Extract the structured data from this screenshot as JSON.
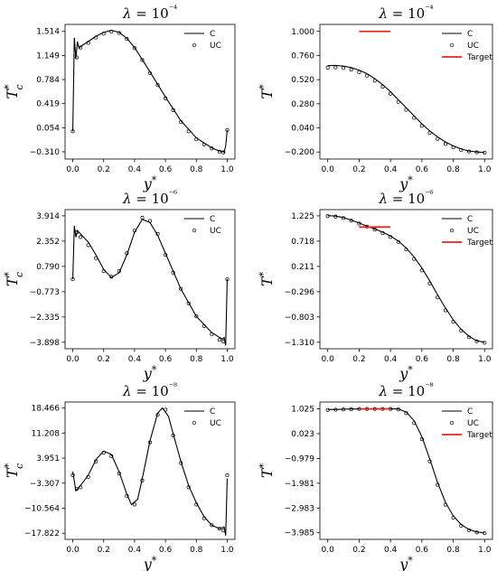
{
  "chart_data": [
    {
      "type": "line",
      "title": "λ = 10⁻⁴",
      "xlabel": "y*",
      "ylabel": "Tc*",
      "xlim": [
        -0.05,
        1.05
      ],
      "ylim": [
        -0.42,
        1.62
      ],
      "xticks": [
        "0.0",
        "0.2",
        "0.4",
        "0.6",
        "0.8",
        "1.0"
      ],
      "yticks": [
        "-0.310",
        "0.054",
        "0.419",
        "0.784",
        "1.149",
        "1.514"
      ],
      "legend_position": "top-right",
      "series": [
        {
          "name": "C",
          "style": "line",
          "color": "#000000",
          "x": [
            0,
            0.01,
            0.02,
            0.03,
            0.04,
            0.06,
            0.1,
            0.15,
            0.2,
            0.25,
            0.3,
            0.35,
            0.4,
            0.5,
            0.6,
            0.7,
            0.8,
            0.9,
            0.95,
            0.97,
            0.98,
            0.99,
            1.0
          ],
          "y": [
            0.0,
            1.42,
            1.1,
            1.36,
            1.26,
            1.3,
            1.36,
            1.44,
            1.5,
            1.53,
            1.5,
            1.41,
            1.27,
            0.9,
            0.52,
            0.16,
            -0.1,
            -0.25,
            -0.3,
            -0.3,
            -0.32,
            -0.22,
            0.02
          ]
        },
        {
          "name": "UC",
          "style": "markers",
          "color": "#000000",
          "x": [
            0,
            0.025,
            0.05,
            0.1,
            0.15,
            0.2,
            0.25,
            0.3,
            0.35,
            0.4,
            0.45,
            0.5,
            0.55,
            0.6,
            0.65,
            0.7,
            0.75,
            0.8,
            0.85,
            0.9,
            0.95,
            0.975,
            1.0
          ],
          "y": [
            0.0,
            1.12,
            1.27,
            1.34,
            1.42,
            1.48,
            1.51,
            1.49,
            1.4,
            1.26,
            1.08,
            0.88,
            0.7,
            0.5,
            0.32,
            0.14,
            0.0,
            -0.12,
            -0.2,
            -0.26,
            -0.31,
            -0.32,
            0.02
          ]
        }
      ]
    },
    {
      "type": "line",
      "title": "λ = 10⁻⁴",
      "xlabel": "y*",
      "ylabel": "T*",
      "xlim": [
        -0.05,
        1.05
      ],
      "ylim": [
        -0.27,
        1.07
      ],
      "xticks": [
        "0.0",
        "0.2",
        "0.4",
        "0.6",
        "0.8",
        "1.0"
      ],
      "yticks": [
        "-0.200",
        "0.040",
        "0.280",
        "0.520",
        "0.760",
        "1.000"
      ],
      "legend_position": "top-right",
      "series": [
        {
          "name": "C",
          "style": "line",
          "color": "#000000",
          "x": [
            0,
            0.05,
            0.1,
            0.15,
            0.2,
            0.25,
            0.3,
            0.35,
            0.4,
            0.45,
            0.5,
            0.55,
            0.6,
            0.65,
            0.7,
            0.75,
            0.8,
            0.85,
            0.9,
            0.95,
            1.0
          ],
          "y": [
            0.66,
            0.662,
            0.655,
            0.64,
            0.615,
            0.58,
            0.53,
            0.47,
            0.4,
            0.32,
            0.24,
            0.16,
            0.08,
            0.01,
            -0.05,
            -0.1,
            -0.14,
            -0.17,
            -0.19,
            -0.2,
            -0.205
          ]
        },
        {
          "name": "UC",
          "style": "markers",
          "color": "#000000",
          "x": [
            0,
            0.05,
            0.1,
            0.15,
            0.2,
            0.25,
            0.3,
            0.35,
            0.4,
            0.45,
            0.5,
            0.55,
            0.6,
            0.65,
            0.7,
            0.75,
            0.8,
            0.85,
            0.9,
            0.95,
            1.0
          ],
          "y": [
            0.64,
            0.642,
            0.635,
            0.62,
            0.595,
            0.56,
            0.51,
            0.45,
            0.38,
            0.3,
            0.22,
            0.14,
            0.06,
            -0.01,
            -0.07,
            -0.12,
            -0.155,
            -0.18,
            -0.195,
            -0.203,
            -0.207
          ]
        },
        {
          "name": "Target",
          "style": "segment",
          "color": "#e8261e",
          "x": [
            0.2,
            0.4
          ],
          "y": [
            1.0,
            1.0
          ]
        }
      ]
    },
    {
      "type": "line",
      "title": "λ = 10⁻⁶",
      "xlabel": "y*",
      "ylabel": "Tc*",
      "xlim": [
        -0.05,
        1.05
      ],
      "ylim": [
        -4.3,
        4.3
      ],
      "xticks": [
        "0.0",
        "0.2",
        "0.4",
        "0.6",
        "0.8",
        "1.0"
      ],
      "yticks": [
        "-3.898",
        "-2.335",
        "-0.773",
        "0.790",
        "2.352",
        "3.914"
      ],
      "legend_position": "top-right",
      "series": [
        {
          "name": "C",
          "style": "line",
          "color": "#000000",
          "x": [
            0,
            0.01,
            0.02,
            0.03,
            0.05,
            0.1,
            0.15,
            0.2,
            0.25,
            0.3,
            0.35,
            0.4,
            0.45,
            0.5,
            0.55,
            0.6,
            0.7,
            0.8,
            0.9,
            0.95,
            0.97,
            0.98,
            0.99,
            1.0
          ],
          "y": [
            0.0,
            3.3,
            2.6,
            3.0,
            2.8,
            2.3,
            1.5,
            0.6,
            0.1,
            0.4,
            1.5,
            2.9,
            3.7,
            3.5,
            2.7,
            1.6,
            -0.6,
            -2.3,
            -3.3,
            -3.6,
            -3.7,
            -3.6,
            -4.1,
            0.0
          ]
        },
        {
          "name": "UC",
          "style": "markers",
          "color": "#000000",
          "x": [
            0,
            0.025,
            0.05,
            0.1,
            0.15,
            0.2,
            0.25,
            0.3,
            0.35,
            0.4,
            0.45,
            0.5,
            0.55,
            0.6,
            0.65,
            0.7,
            0.75,
            0.8,
            0.85,
            0.9,
            0.95,
            0.975,
            1.0
          ],
          "y": [
            0.0,
            2.9,
            2.6,
            2.1,
            1.3,
            0.5,
            0.15,
            0.5,
            1.6,
            3.0,
            3.8,
            3.6,
            2.8,
            1.5,
            0.4,
            -0.6,
            -1.5,
            -2.3,
            -2.9,
            -3.4,
            -3.75,
            -3.85,
            0.0
          ]
        }
      ]
    },
    {
      "type": "line",
      "title": "λ = 10⁻⁶",
      "xlabel": "y*",
      "ylabel": "T*",
      "xlim": [
        -0.05,
        1.05
      ],
      "ylim": [
        -1.44,
        1.35
      ],
      "xticks": [
        "0.0",
        "0.2",
        "0.4",
        "0.6",
        "0.8",
        "1.0"
      ],
      "yticks": [
        "-1.310",
        "-0.803",
        "-0.296",
        "0.211",
        "0.718",
        "1.225"
      ],
      "legend_position": "top-right",
      "series": [
        {
          "name": "C",
          "style": "line",
          "color": "#000000",
          "x": [
            0,
            0.05,
            0.1,
            0.15,
            0.2,
            0.25,
            0.3,
            0.35,
            0.4,
            0.45,
            0.5,
            0.55,
            0.6,
            0.65,
            0.7,
            0.75,
            0.8,
            0.85,
            0.9,
            0.95,
            1.0
          ],
          "y": [
            1.23,
            1.22,
            1.19,
            1.14,
            1.08,
            1.02,
            0.96,
            0.9,
            0.82,
            0.72,
            0.58,
            0.4,
            0.18,
            -0.08,
            -0.36,
            -0.62,
            -0.86,
            -1.05,
            -1.19,
            -1.28,
            -1.31
          ]
        },
        {
          "name": "UC",
          "style": "markers",
          "color": "#000000",
          "x": [
            0,
            0.05,
            0.1,
            0.15,
            0.2,
            0.25,
            0.3,
            0.35,
            0.4,
            0.45,
            0.5,
            0.55,
            0.6,
            0.65,
            0.7,
            0.75,
            0.8,
            0.85,
            0.9,
            0.95,
            1.0
          ],
          "y": [
            1.22,
            1.21,
            1.18,
            1.13,
            1.07,
            1.01,
            0.95,
            0.88,
            0.8,
            0.7,
            0.55,
            0.36,
            0.13,
            -0.13,
            -0.41,
            -0.67,
            -0.9,
            -1.08,
            -1.21,
            -1.29,
            -1.32
          ]
        },
        {
          "name": "Target",
          "style": "segment",
          "color": "#e8261e",
          "x": [
            0.2,
            0.4
          ],
          "y": [
            1.0,
            1.0
          ]
        }
      ]
    },
    {
      "type": "line",
      "title": "λ = 10⁻⁸",
      "xlabel": "y*",
      "ylabel": "Tc*",
      "xlim": [
        -0.05,
        1.05
      ],
      "ylim": [
        -19.6,
        20.2
      ],
      "xticks": [
        "0.0",
        "0.2",
        "0.4",
        "0.6",
        "0.8",
        "1.0"
      ],
      "yticks": [
        "-17.822",
        "-10.564",
        "-3.307",
        "3.951",
        "11.208",
        "18.466"
      ],
      "legend_position": "top-right",
      "series": [
        {
          "name": "C",
          "style": "line",
          "color": "#000000",
          "x": [
            0,
            0.02,
            0.05,
            0.1,
            0.15,
            0.2,
            0.25,
            0.3,
            0.35,
            0.38,
            0.42,
            0.45,
            0.5,
            0.55,
            0.58,
            0.62,
            0.65,
            0.7,
            0.75,
            0.8,
            0.85,
            0.9,
            0.95,
            0.98,
            0.99,
            1.0
          ],
          "y": [
            0.0,
            -5.5,
            -4.0,
            -1.0,
            3.5,
            6.0,
            5.0,
            0.0,
            -6.5,
            -9.5,
            -8.0,
            -2.0,
            9.0,
            17.0,
            18.5,
            16.0,
            11.0,
            3.0,
            -4.0,
            -9.0,
            -13.0,
            -15.5,
            -16.5,
            -16.0,
            -18.5,
            -2.0
          ]
        },
        {
          "name": "UC",
          "style": "markers",
          "color": "#000000",
          "x": [
            0,
            0.025,
            0.05,
            0.1,
            0.15,
            0.2,
            0.25,
            0.3,
            0.35,
            0.4,
            0.45,
            0.5,
            0.55,
            0.6,
            0.65,
            0.7,
            0.75,
            0.8,
            0.85,
            0.9,
            0.95,
            0.975,
            1.0
          ],
          "y": [
            -1.0,
            -5.0,
            -4.5,
            -1.5,
            3.0,
            5.5,
            4.5,
            -0.5,
            -7.0,
            -9.5,
            -2.5,
            8.5,
            16.5,
            18.0,
            10.5,
            2.5,
            -4.5,
            -9.5,
            -13.5,
            -15.5,
            -16.5,
            -17.0,
            -1.0
          ]
        }
      ]
    },
    {
      "type": "line",
      "title": "λ = 10⁻⁸",
      "xlabel": "y*",
      "ylabel": "T*",
      "xlim": [
        -0.05,
        1.05
      ],
      "ylim": [
        -4.25,
        1.3
      ],
      "xticks": [
        "0.0",
        "0.2",
        "0.4",
        "0.6",
        "0.8",
        "1.0"
      ],
      "yticks": [
        "-3.985",
        "-2.983",
        "-1.981",
        "-0.979",
        "0.023",
        "1.025"
      ],
      "legend_position": "top-right",
      "series": [
        {
          "name": "C",
          "style": "line",
          "color": "#000000",
          "x": [
            0,
            0.05,
            0.1,
            0.15,
            0.2,
            0.25,
            0.3,
            0.35,
            0.4,
            0.45,
            0.5,
            0.55,
            0.6,
            0.65,
            0.7,
            0.75,
            0.8,
            0.85,
            0.9,
            0.95,
            1.0
          ],
          "y": [
            1.0,
            1.0,
            1.01,
            1.02,
            1.02,
            1.02,
            1.02,
            1.02,
            1.03,
            1.02,
            0.9,
            0.55,
            -0.1,
            -1.0,
            -1.95,
            -2.75,
            -3.3,
            -3.65,
            -3.85,
            -3.95,
            -3.985
          ]
        },
        {
          "name": "UC",
          "style": "markers",
          "color": "#000000",
          "x": [
            0,
            0.05,
            0.1,
            0.15,
            0.2,
            0.25,
            0.3,
            0.35,
            0.4,
            0.45,
            0.5,
            0.55,
            0.6,
            0.65,
            0.7,
            0.75,
            0.8,
            0.85,
            0.9,
            0.95,
            1.0
          ],
          "y": [
            0.98,
            0.99,
            1.0,
            1.01,
            1.02,
            1.02,
            1.02,
            1.02,
            1.02,
            1.0,
            0.85,
            0.45,
            -0.2,
            -1.1,
            -2.05,
            -2.85,
            -3.38,
            -3.7,
            -3.88,
            -3.97,
            -4.0
          ]
        },
        {
          "name": "Target",
          "style": "segment",
          "color": "#e8261e",
          "x": [
            0.2,
            0.4
          ],
          "y": [
            1.025,
            1.025
          ]
        }
      ]
    }
  ]
}
